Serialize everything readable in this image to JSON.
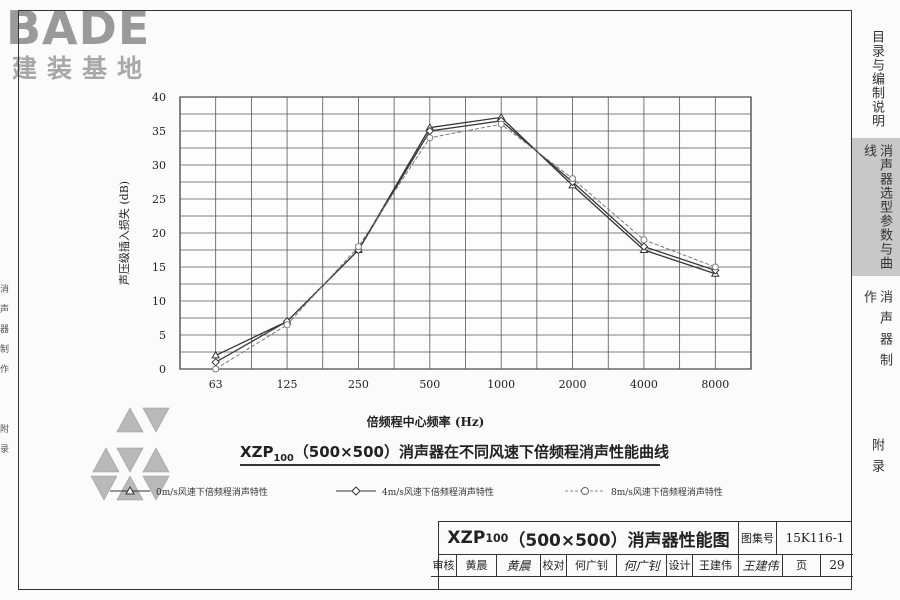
{
  "logo": {
    "wordmark": "BADE",
    "subtitle": "建装基地"
  },
  "left_strip": [
    "消",
    "声",
    "器",
    "制",
    "作",
    "附",
    "录"
  ],
  "right_tabs": [
    {
      "label": "目录与编制说明",
      "active": false
    },
    {
      "label": "消声器选型参数与曲线",
      "active": true
    },
    {
      "label": "消声器制作",
      "active": false
    },
    {
      "label": "附录",
      "active": false
    }
  ],
  "chart_data": {
    "type": "line",
    "categories": [
      "63",
      "125",
      "250",
      "500",
      "1000",
      "2000",
      "4000",
      "8000"
    ],
    "ylabel": "声压级插入损失 (dB)",
    "xlabel": "倍频程中心频率 (Hz)",
    "ylim": [
      0,
      40
    ],
    "yticks": [
      0,
      5,
      10,
      15,
      20,
      25,
      30,
      35,
      40
    ],
    "grid": true,
    "series": [
      {
        "name": "0m/s风速下倍频程消声特性",
        "marker": "triangle",
        "color": "#333333",
        "values": [
          2,
          7,
          17.5,
          35.5,
          37,
          27,
          17.5,
          14
        ]
      },
      {
        "name": "4m/s风速下倍频程消声特性",
        "marker": "diamond",
        "color": "#3a3a3a",
        "values": [
          1,
          7,
          17.5,
          35,
          36.5,
          27.5,
          18,
          14.5
        ]
      },
      {
        "name": "8m/s风速下倍频程消声特性",
        "marker": "circle",
        "color": "#7a7a7a",
        "values": [
          0,
          6.5,
          18,
          34,
          36,
          28,
          19,
          15
        ]
      }
    ]
  },
  "caption": {
    "prefix": "XZP",
    "sub": "100",
    "rest": "（500×500）消声器在不同风速下倍频程消声性能曲线"
  },
  "title_block": {
    "drawing_title_prefix": "XZP",
    "drawing_title_sub": "100",
    "drawing_title_rest": "（500×500）消声器性能图",
    "atlas_label": "图集号",
    "atlas_no": "15K116-1",
    "review_label": "审核",
    "reviewer": "黄晨",
    "reviewer_sig": "黄晨",
    "check_label": "校对",
    "checker": "何广钊",
    "checker_sig": "何广钊",
    "design_label": "设计",
    "designer": "王建伟",
    "designer_sig": "王建伟",
    "page_label": "页",
    "page_no": "29"
  }
}
